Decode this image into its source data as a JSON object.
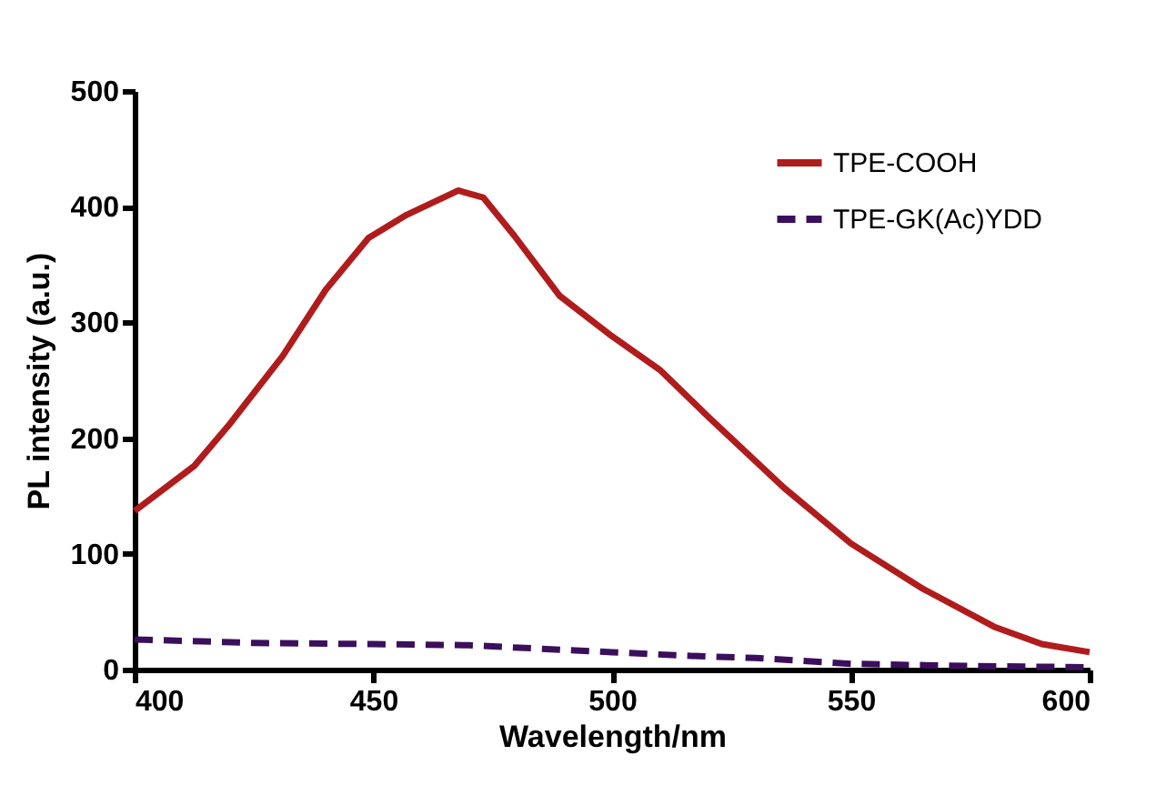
{
  "chart_data": {
    "type": "line",
    "xlabel": "Wavelength/nm",
    "ylabel": "PL intensity (a.u.)",
    "xlim": [
      400,
      600
    ],
    "xticks": [
      400,
      450,
      500,
      550,
      600
    ],
    "ylim": [
      0,
      500
    ],
    "yticks": [
      0,
      100,
      200,
      300,
      400,
      500
    ],
    "grid": false,
    "legend": "top right",
    "marker": "none",
    "series": [
      {
        "name": "TPE-COOH",
        "color": "#b01c1c",
        "line_style": "solid",
        "x": [
          400,
          412.5,
          419.7,
          431,
          440,
          449,
          457,
          467.8,
          473,
          479.5,
          489,
          500,
          510,
          520,
          536,
          550,
          565,
          580,
          590,
          600
        ],
        "values": [
          137,
          176,
          211,
          271,
          328,
          373,
          393,
          414,
          408,
          375,
          323,
          288,
          259,
          219,
          157,
          109,
          70,
          37,
          22,
          15
        ]
      },
      {
        "name": "TPE-GK(Ac)YDD",
        "color": "#3b0f5c",
        "line_style": "dashed",
        "x": [
          400,
          425,
          450,
          470,
          485,
          500,
          515,
          530,
          550,
          575,
          600
        ],
        "values": [
          26,
          23,
          22,
          21,
          18,
          15,
          12,
          10,
          5,
          3,
          2
        ]
      }
    ]
  }
}
